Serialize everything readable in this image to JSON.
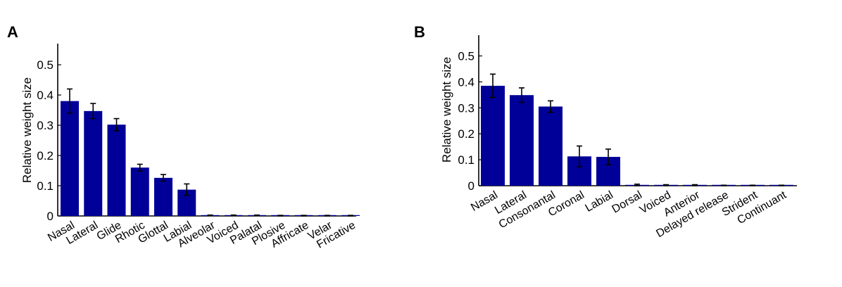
{
  "bar_color": "#000099",
  "chart_data": [
    {
      "type": "bar",
      "panel": "A",
      "title": "",
      "xlabel": "",
      "ylabel": "Relative weight size",
      "ylim": [
        0,
        0.57
      ],
      "yticks": [
        0,
        0.1,
        0.2,
        0.3,
        0.4,
        0.5
      ],
      "ytick_labels": [
        "0",
        "0.1",
        "0.2",
        "0.3",
        "0.4",
        "0.5"
      ],
      "categories": [
        "Nasal",
        "Lateral",
        "Glide",
        "Rhotic",
        "Glottal",
        "Labial",
        "Alveolar",
        "Voiced",
        "Palatal",
        "Plosive",
        "Affricate",
        "Velar",
        "Fricative"
      ],
      "values": [
        0.38,
        0.347,
        0.302,
        0.16,
        0.126,
        0.087,
        0.002,
        0.002,
        0.002,
        0.001,
        0.001,
        0.001,
        0.001
      ],
      "errors": [
        0.04,
        0.025,
        0.02,
        0.011,
        0.011,
        0.019,
        0.001,
        0.001,
        0.001,
        0.001,
        0.001,
        0.001,
        0.001
      ]
    },
    {
      "type": "bar",
      "panel": "B",
      "title": "",
      "xlabel": "",
      "ylabel": "Relative weight size",
      "ylim": [
        0,
        0.58
      ],
      "yticks": [
        0,
        0.1,
        0.2,
        0.3,
        0.4,
        0.5
      ],
      "ytick_labels": [
        "0",
        "0.1",
        "0.2",
        "0.3",
        "0.4",
        "0.5"
      ],
      "categories": [
        "Nasal",
        "Lateral",
        "Consonantal",
        "Coronal",
        "Labial",
        "Dorsal",
        "Voiced",
        "Anterior",
        "Delayed release",
        "Strident",
        "Continuant"
      ],
      "values": [
        0.385,
        0.349,
        0.305,
        0.113,
        0.111,
        0.003,
        0.002,
        0.002,
        0.001,
        0.001,
        0.001
      ],
      "errors": [
        0.045,
        0.028,
        0.022,
        0.04,
        0.03,
        0.003,
        0.002,
        0.002,
        0.001,
        0.001,
        0.001
      ]
    }
  ]
}
